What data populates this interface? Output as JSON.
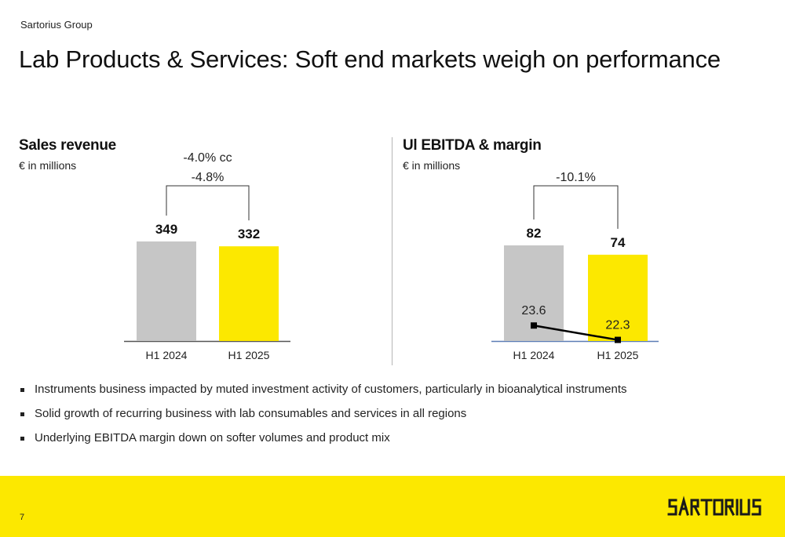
{
  "header": {
    "group_label": "Sartorius Group",
    "title": "Lab Products & Services: Soft end markets weigh on performance"
  },
  "chart_data": [
    {
      "type": "bar",
      "title": "Sales revenue",
      "unit": "€ in millions",
      "categories": [
        "H1 2024",
        "H1 2025"
      ],
      "values": [
        349,
        332
      ],
      "value_labels": [
        "349",
        "332"
      ],
      "bar_colors": [
        "#c6c6c6",
        "#fce800"
      ],
      "change_labels": [
        "-4.0% cc",
        "-4.8%"
      ],
      "ylim": [
        0,
        349
      ],
      "grid": false
    },
    {
      "type": "bar",
      "title": "Ul EBITDA & margin",
      "unit": "€ in millions",
      "categories": [
        "H1 2024",
        "H1 2025"
      ],
      "values": [
        82,
        74
      ],
      "value_labels": [
        "82",
        "74"
      ],
      "bar_colors": [
        "#c6c6c6",
        "#fce800"
      ],
      "change_labels": [
        "-10.1%"
      ],
      "line_series": {
        "values": [
          23.6,
          22.3
        ],
        "labels": [
          "23.6",
          "22.3"
        ],
        "color": "#000000"
      },
      "ylim": [
        0,
        82
      ],
      "grid": false
    }
  ],
  "bullets": [
    "Instruments business impacted by muted investment activity of customers, particularly in bioanalytical instruments",
    "Solid growth of recurring business with lab consumables and services in all regions",
    "Underlying EBITDA margin down on softer volumes and product mix"
  ],
  "footer": {
    "page_number": "7",
    "brand_color": "#fce800",
    "logo_text": "SARTORIUS"
  }
}
